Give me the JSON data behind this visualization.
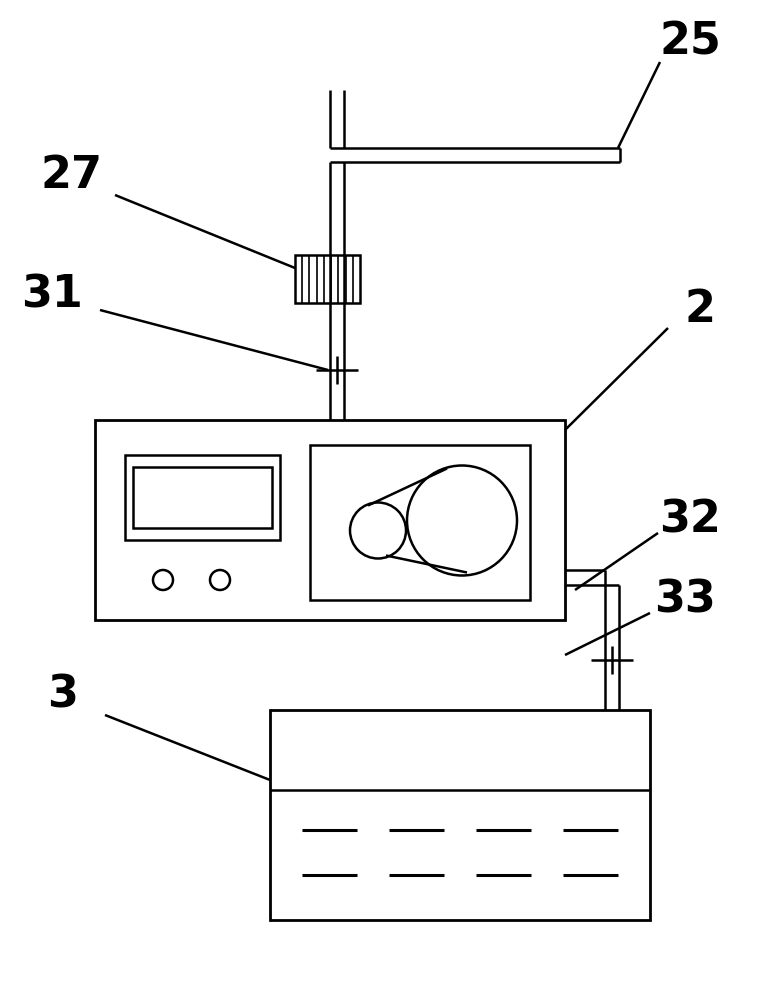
{
  "bg_color": "#ffffff",
  "line_color": "#000000",
  "label_color": "#000000",
  "label_fontsize": 32,
  "lw": 1.8
}
